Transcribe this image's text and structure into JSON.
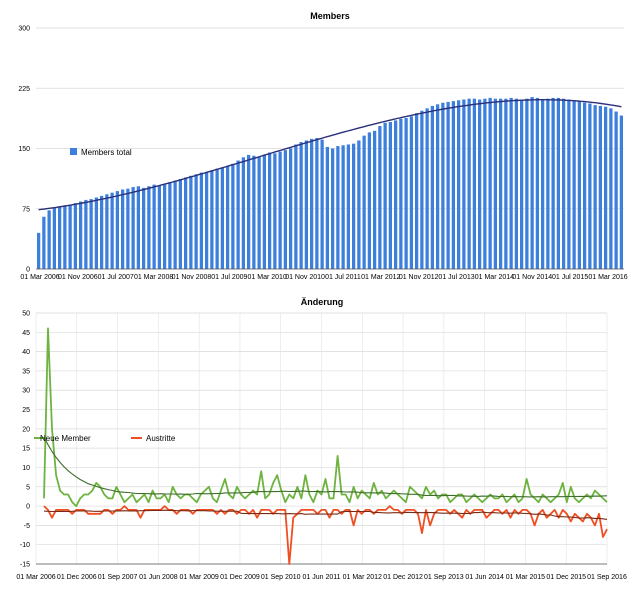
{
  "chart_data": [
    {
      "type": "bar",
      "title": "Members",
      "xlabel": "",
      "ylabel": "",
      "ylim": [
        0,
        300
      ],
      "yticks": [
        "0",
        "75",
        "150",
        "225",
        "300"
      ],
      "xtick_labels": [
        "01 Mar 2006",
        "01 Nov 2006",
        "01 Jul 2007",
        "01 Mar 2008",
        "01 Nov 2008",
        "01 Jul 2009",
        "01 Mar 2010",
        "01 Nov 2010",
        "01 Jul 2011",
        "01 Mar 2012",
        "01 Nov 2012",
        "01 Jul 2013",
        "01 Mar 2014",
        "01 Nov 2014",
        "01 Jul 2015",
        "01 Mar 2016"
      ],
      "grid": true,
      "legend_position": "left",
      "series": [
        {
          "name": "Members total",
          "color": "#3d7fdc",
          "values": [
            45,
            65,
            73,
            76,
            78,
            79,
            80,
            82,
            84,
            86,
            87,
            89,
            91,
            93,
            95,
            97,
            99,
            100,
            102,
            103,
            101,
            103,
            105,
            104,
            105,
            108,
            110,
            112,
            114,
            116,
            118,
            120,
            121,
            123,
            125,
            126,
            128,
            131,
            135,
            139,
            142,
            141,
            140,
            142,
            145,
            144,
            146,
            148,
            150,
            155,
            158,
            160,
            162,
            163,
            161,
            152,
            150,
            153,
            154,
            155,
            156,
            160,
            166,
            170,
            172,
            178,
            182,
            183,
            185,
            187,
            188,
            190,
            194,
            197,
            200,
            203,
            205,
            207,
            208,
            209,
            210,
            211,
            212,
            212,
            211,
            212,
            213,
            212,
            212,
            212,
            213,
            212,
            211,
            212,
            214,
            213,
            211,
            212,
            213,
            213,
            212,
            211,
            210,
            209,
            207,
            206,
            204,
            203,
            202,
            200,
            196,
            191
          ]
        }
      ],
      "trend_color": "#2b2f7a"
    },
    {
      "type": "line",
      "title": "Änderung",
      "xlabel": "",
      "ylabel": "",
      "ylim": [
        -15,
        50
      ],
      "yticks": [
        "-15",
        "-10",
        "-5",
        "0",
        "5",
        "10",
        "15",
        "20",
        "25",
        "30",
        "35",
        "40",
        "45",
        "50"
      ],
      "xtick_labels": [
        "01 Mar 2006",
        "01 Dec 2006",
        "01 Sep 2007",
        "01 Jun 2008",
        "01 Mar 2009",
        "01 Dec 2009",
        "01 Sep 2010",
        "01 Jun 2011",
        "01 Mar 2012",
        "01 Dec 2012",
        "01 Sep 2013",
        "01 Jun 2014",
        "01 Mar 2015",
        "01 Dec 2015",
        "01 Sep 2016"
      ],
      "grid": true,
      "legend_position": "left",
      "series": [
        {
          "name": "Neue Member",
          "color": "#6db33f",
          "trend_color": "#3f6e2a",
          "values": [
            2,
            46,
            20,
            8,
            4,
            3,
            3,
            1,
            0,
            2,
            3,
            3,
            4,
            6,
            5,
            3,
            2,
            2,
            5,
            3,
            1,
            2,
            3,
            1,
            2,
            3,
            1,
            4,
            2,
            2,
            3,
            1,
            5,
            3,
            2,
            3,
            3,
            2,
            1,
            3,
            4,
            5,
            2,
            1,
            4,
            7,
            3,
            2,
            5,
            3,
            2,
            3,
            4,
            3,
            9,
            2,
            3,
            6,
            8,
            4,
            1,
            3,
            2,
            5,
            2,
            8,
            3,
            1,
            4,
            3,
            7,
            2,
            2,
            13,
            3,
            3,
            1,
            5,
            2,
            4,
            3,
            2,
            6,
            3,
            4,
            2,
            3,
            4,
            3,
            2,
            1,
            5,
            4,
            3,
            2,
            5,
            3,
            4,
            2,
            3,
            3,
            1,
            2,
            3,
            3,
            1,
            2,
            3,
            2,
            1,
            2,
            3,
            2,
            2,
            3,
            1,
            2,
            3,
            1,
            2,
            7,
            3,
            2,
            1,
            3,
            2,
            1,
            2,
            3,
            6,
            1,
            5,
            2,
            1,
            2,
            3,
            2,
            4,
            3,
            2,
            1
          ]
        },
        {
          "name": "Austritte",
          "color": "#f04e23",
          "trend_color": "#7a2a12",
          "values": [
            0,
            -1,
            -3,
            -1,
            -1,
            -1,
            -1,
            -2,
            -1,
            -1,
            -1,
            -2,
            -2,
            -2,
            -2,
            -1,
            -1,
            -2,
            -1,
            -1,
            0,
            -1,
            -1,
            -1,
            -3,
            -1,
            -1,
            -1,
            -1,
            -1,
            0,
            -1,
            -1,
            -2,
            -1,
            -1,
            -1,
            -2,
            -1,
            -1,
            -1,
            -1,
            -1,
            -2,
            -1,
            -2,
            -1,
            -1,
            -2,
            -1,
            -1,
            -2,
            -1,
            -3,
            -1,
            -1,
            -1,
            -2,
            -1,
            -1,
            -1,
            -15,
            -3,
            -2,
            -1,
            -1,
            -1,
            -1,
            -2,
            -1,
            -1,
            -3,
            -1,
            -1,
            -2,
            -1,
            -1,
            -5,
            -1,
            -2,
            -1,
            -1,
            -2,
            -1,
            -1,
            -1,
            0,
            -1,
            -1,
            -2,
            -1,
            -1,
            -1,
            -2,
            -7,
            -1,
            -5,
            -2,
            -1,
            -1,
            -1,
            -2,
            -1,
            -2,
            -3,
            -1,
            -2,
            -1,
            -1,
            -1,
            -3,
            -2,
            -1,
            -1,
            -2,
            -1,
            -3,
            -1,
            -2,
            -1,
            -1,
            -2,
            -5,
            -2,
            -1,
            -3,
            -2,
            -1,
            -3,
            -1,
            -2,
            -4,
            -2,
            -3,
            -4,
            -2,
            -3,
            -5,
            -2,
            -8,
            -6
          ]
        }
      ]
    }
  ]
}
